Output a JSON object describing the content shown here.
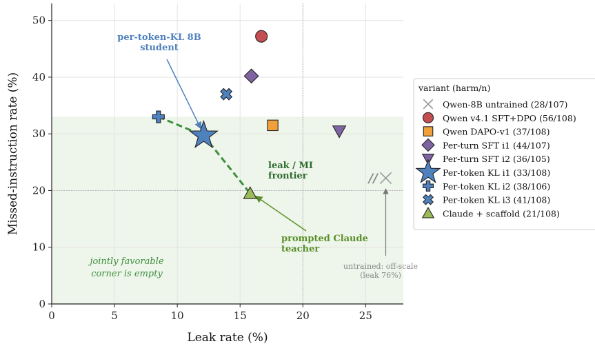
{
  "chart_data": {
    "type": "scatter",
    "xlabel": "Leak rate (%)",
    "ylabel": "Missed-instruction rate (%)",
    "xlim": [
      0,
      28
    ],
    "ylim": [
      0,
      53
    ],
    "xticks": [
      "0",
      "5",
      "10",
      "15",
      "20",
      "25"
    ],
    "yticks": [
      "0",
      "10",
      "20",
      "30",
      "40",
      "50"
    ],
    "grid": true,
    "legend_title": "variant (harm/n)",
    "legend_position": "right",
    "series": [
      {
        "name": "Qwen-8B untrained (28/107)",
        "marker": "x",
        "color": "#9a9a9a",
        "x": 76,
        "y": 22,
        "off_scale": true
      },
      {
        "name": "Qwen v4.1 SFT+DPO (56/108)",
        "marker": "circle",
        "color": "#c44e52",
        "x": 16.7,
        "y": 47.2
      },
      {
        "name": "Qwen DAPO-v1 (37/108)",
        "marker": "square",
        "color": "#f0a13b",
        "x": 17.6,
        "y": 31.5
      },
      {
        "name": "Per-turn SFT i1 (44/107)",
        "marker": "diamond",
        "color": "#8064a2",
        "x": 15.9,
        "y": 40.2
      },
      {
        "name": "Per-turn SFT i2 (36/105)",
        "marker": "triangle-down",
        "color": "#8064a2",
        "x": 22.9,
        "y": 30.5
      },
      {
        "name": "Per-token KL i1 (33/108)",
        "marker": "star",
        "color": "#4f81bd",
        "x": 12.1,
        "y": 29.7
      },
      {
        "name": "Per-token KL i2 (38/106)",
        "marker": "plus",
        "color": "#4f81bd",
        "x": 8.5,
        "y": 33.0
      },
      {
        "name": "Per-token KL i3 (41/108)",
        "marker": "x-filled",
        "color": "#4f81bd",
        "x": 13.9,
        "y": 37.0
      },
      {
        "name": "Claude + scaffold (21/108)",
        "marker": "triangle-up",
        "color": "#9bbb59",
        "x": 15.8,
        "y": 19.5
      }
    ],
    "frontier": [
      [
        8.5,
        33.0
      ],
      [
        12.1,
        29.7
      ],
      [
        15.8,
        19.5
      ]
    ],
    "reference_lines": {
      "x": 20,
      "y": 20
    },
    "shaded_region": {
      "x": [
        0,
        28
      ],
      "y": [
        0,
        33
      ]
    },
    "annotations": {
      "student": "per-token-KL 8B student",
      "teacher": "prompted Claude teacher",
      "frontier": "leak / MI frontier",
      "corner": "jointly favorable corner is empty",
      "offscale": "untrained: off-scale (leak 76%)",
      "break_mark": "//"
    }
  }
}
